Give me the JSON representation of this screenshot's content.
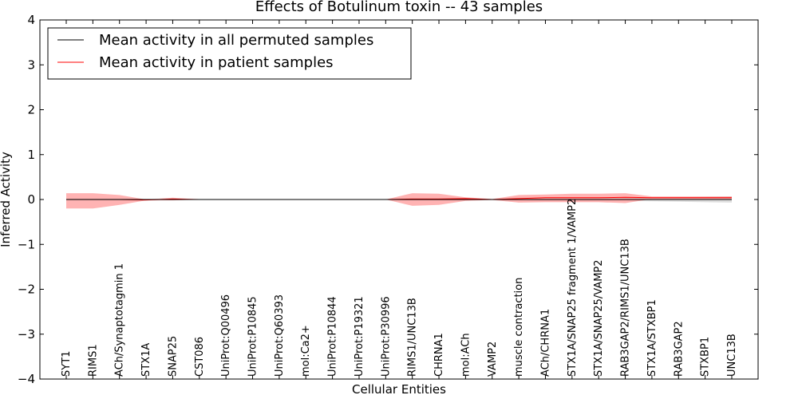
{
  "chart_data": {
    "type": "line",
    "title": "Effects of Botulinum toxin -- 43 samples",
    "xlabel": "Cellular Entities",
    "ylabel": "Inferred Activity",
    "ylim": [
      -4,
      4
    ],
    "yticks": [
      4,
      3,
      2,
      1,
      0,
      -1,
      -2,
      -3,
      -4
    ],
    "ytick_labels": [
      "4",
      "3",
      "2",
      "1",
      "0",
      "−1",
      "−2",
      "−3",
      "−4"
    ],
    "categories": [
      "SYT1",
      "RIMS1",
      "ACh/Synaptotagmin 1",
      "STX1A",
      "SNAP25",
      "CST086",
      "UniProt:Q00496",
      "UniProt:P10845",
      "UniProt:Q60393",
      "mol:Ca2+",
      "UniProt:P10844",
      "UniProt:P19321",
      "UniProt:P30996",
      "RIMS1/UNC13B",
      "CHRNA1",
      "mol:ACh",
      "VAMP2",
      "muscle contraction",
      "ACh/CHRNA1",
      "STX1A/SNAP25 fragment 1/VAMP2",
      "STX1A/SNAP25/VAMP2",
      "RAB3GAP2/RIMS1/UNC13B",
      "STX1A/STXBP1",
      "RAB3GAP2",
      "STXBP1",
      "UNC13B"
    ],
    "series": [
      {
        "name": "Mean activity in all permuted samples",
        "color": "#000000",
        "values": [
          0.0,
          0.0,
          0.0,
          0.0,
          0.0,
          0.0,
          0.0,
          0.0,
          0.0,
          0.0,
          0.0,
          0.0,
          0.0,
          0.0,
          0.0,
          0.0,
          0.0,
          0.0,
          0.0,
          0.0,
          0.0,
          0.0,
          0.0,
          0.0,
          0.0,
          0.0
        ],
        "band_upper": [
          0.02,
          0.02,
          0.02,
          0.01,
          0.01,
          0.0,
          0.0,
          0.0,
          0.0,
          0.0,
          0.0,
          0.0,
          0.0,
          0.02,
          0.02,
          0.01,
          0.0,
          0.02,
          0.03,
          0.03,
          0.03,
          0.03,
          0.04,
          0.05,
          0.06,
          0.07
        ],
        "band_lower": [
          -0.02,
          -0.02,
          -0.02,
          -0.01,
          -0.01,
          0.0,
          0.0,
          0.0,
          0.0,
          0.0,
          0.0,
          0.0,
          0.0,
          -0.02,
          -0.02,
          -0.01,
          0.0,
          -0.02,
          -0.03,
          -0.03,
          -0.03,
          -0.03,
          -0.04,
          -0.05,
          -0.06,
          -0.07
        ],
        "band_color": "#c8c8c8"
      },
      {
        "name": "Mean activity in patient samples",
        "color": "#ff0000",
        "values": [
          0.0,
          0.0,
          0.0,
          -0.01,
          0.01,
          0.0,
          0.0,
          0.0,
          0.0,
          0.0,
          0.0,
          0.0,
          0.0,
          0.01,
          0.01,
          0.02,
          0.0,
          0.02,
          0.04,
          0.04,
          0.04,
          0.05,
          0.04,
          0.04,
          0.04,
          0.04
        ],
        "band_upper": [
          0.14,
          0.14,
          0.1,
          0.0,
          0.04,
          0.0,
          0.0,
          0.0,
          0.0,
          0.0,
          0.0,
          0.0,
          0.0,
          0.14,
          0.13,
          0.05,
          0.01,
          0.1,
          0.11,
          0.13,
          0.13,
          0.14,
          0.07,
          0.07,
          0.07,
          0.07
        ],
        "band_lower": [
          -0.2,
          -0.2,
          -0.12,
          -0.02,
          -0.02,
          0.0,
          0.0,
          0.0,
          0.0,
          0.0,
          0.0,
          0.0,
          0.0,
          -0.14,
          -0.12,
          -0.03,
          -0.01,
          -0.07,
          -0.06,
          -0.06,
          -0.06,
          -0.08,
          0.01,
          0.01,
          0.01,
          0.01
        ],
        "band_color": "#ff8080"
      }
    ],
    "legend": {
      "position": "top-left",
      "entries": [
        "Mean activity in all permuted samples",
        "Mean activity in patient samples"
      ]
    },
    "grid": false
  }
}
